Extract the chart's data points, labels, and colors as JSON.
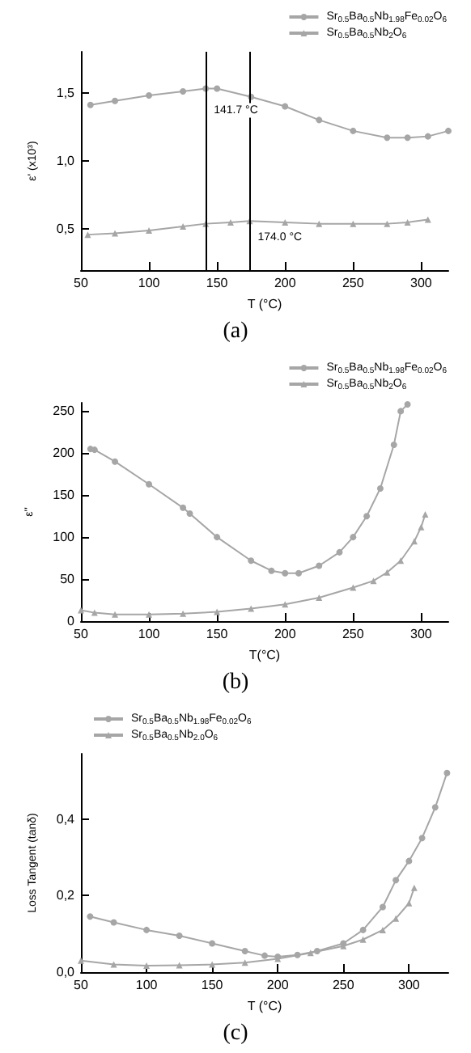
{
  "chart_data": [
    {
      "type": "line",
      "title": "(a)",
      "xlabel": "T (°C)",
      "ylabel": "ε' (x10³)",
      "legend": "top right",
      "grid": false,
      "xlim": [
        50,
        320
      ],
      "xticks": [
        50,
        100,
        150,
        200,
        250,
        300
      ],
      "ylim": [
        0.2,
        1.8
      ],
      "yticks": [
        {
          "value": 0.5,
          "label": "0,5"
        },
        {
          "value": 1.0,
          "label": "1,0"
        },
        {
          "value": 1.5,
          "label": "1,5"
        }
      ],
      "ref_lines": [
        {
          "axis": "x",
          "value": 141.7,
          "color": "#000000"
        },
        {
          "axis": "x",
          "value": 174.0,
          "color": "#000000"
        }
      ],
      "annotations": [
        {
          "text": "141.7 °C",
          "x": 141.7,
          "y": 1.37
        },
        {
          "text": "174.0 °C",
          "x": 174.0,
          "y": 0.44
        }
      ],
      "series": [
        {
          "name": "Sr$_{0.5}$Ba$_{0.5}$Nb$_{1.98}$Fe$_{0.02}$O$_{6}$",
          "color": "#a6a6a6",
          "marker": "circle",
          "x": [
            57,
            75,
            100,
            125,
            141.7,
            150,
            175,
            200,
            225,
            250,
            275,
            290,
            305,
            320
          ],
          "values": [
            1.41,
            1.44,
            1.48,
            1.51,
            1.53,
            1.53,
            1.47,
            1.4,
            1.3,
            1.22,
            1.17,
            1.17,
            1.18,
            1.22
          ]
        },
        {
          "name": "Sr$_{0.5}$Ba$_{0.5}$Nb$_{2}$O$_{6}$",
          "color": "#a6a6a6",
          "marker": "triangle",
          "x": [
            55,
            75,
            100,
            125,
            141.7,
            160,
            174,
            200,
            225,
            250,
            275,
            290,
            305
          ],
          "values": [
            0.46,
            0.47,
            0.49,
            0.52,
            0.54,
            0.55,
            0.56,
            0.55,
            0.54,
            0.54,
            0.54,
            0.55,
            0.57
          ]
        }
      ]
    },
    {
      "type": "line",
      "title": "(b)",
      "xlabel": "T(°C)",
      "ylabel": "ε''",
      "legend": "top right",
      "grid": false,
      "xlim": [
        50,
        320
      ],
      "xticks": [
        50,
        100,
        150,
        200,
        250,
        300
      ],
      "ylim": [
        0,
        260
      ],
      "yticks": [
        0,
        50,
        100,
        150,
        200,
        250
      ],
      "series": [
        {
          "name": "Sr$_{0.5}$Ba$_{0.5}$Nb$_{1.98}$Fe$_{0.02}$O$_{6}$",
          "color": "#a6a6a6",
          "marker": "circle",
          "x": [
            57,
            60,
            75,
            100,
            125,
            130,
            150,
            175,
            190,
            200,
            210,
            225,
            240,
            250,
            260,
            270,
            280,
            285,
            290
          ],
          "values": [
            205,
            204,
            190,
            163,
            135,
            128,
            100,
            72,
            60,
            57,
            57,
            66,
            82,
            100,
            125,
            158,
            210,
            250,
            258
          ]
        },
        {
          "name": "Sr$_{0.5}$Ba$_{0.5}$Nb$_{2}$O$_{6}$",
          "color": "#a6a6a6",
          "marker": "triangle",
          "x": [
            50,
            60,
            75,
            100,
            125,
            150,
            175,
            200,
            225,
            250,
            265,
            275,
            285,
            295,
            300,
            303
          ],
          "values": [
            13,
            10,
            8,
            8,
            9,
            11,
            15,
            20,
            28,
            40,
            48,
            58,
            72,
            95,
            112,
            127
          ]
        }
      ]
    },
    {
      "type": "line",
      "title": "(c)",
      "xlabel": "T (°C)",
      "ylabel": "Loss Tangent (tanδ)",
      "legend": "top left",
      "grid": false,
      "xlim": [
        50,
        330
      ],
      "xticks": [
        50,
        100,
        150,
        200,
        250,
        300
      ],
      "ylim": [
        0,
        0.57
      ],
      "yticks": [
        {
          "value": 0,
          "label": "0,0"
        },
        {
          "value": 0.2,
          "label": "0,2"
        },
        {
          "value": 0.4,
          "label": "0,4"
        }
      ],
      "series": [
        {
          "name": "Sr$_{0.5}$Ba$_{0.5}$Nb$_{1.98}$Fe$_{0.02}$O$_{6}$",
          "color": "#a6a6a6",
          "marker": "circle",
          "x": [
            57,
            75,
            100,
            125,
            150,
            175,
            190,
            200,
            215,
            230,
            250,
            265,
            280,
            290,
            300,
            310,
            320,
            329
          ],
          "values": [
            0.145,
            0.13,
            0.11,
            0.095,
            0.075,
            0.055,
            0.043,
            0.04,
            0.045,
            0.055,
            0.075,
            0.11,
            0.17,
            0.24,
            0.29,
            0.35,
            0.43,
            0.52
          ]
        },
        {
          "name": "Sr$_{0.5}$Ba$_{0.5}$Nb$_{2.0}$O$_{6}$",
          "color": "#a6a6a6",
          "marker": "triangle",
          "x": [
            50,
            75,
            100,
            125,
            150,
            175,
            200,
            225,
            250,
            265,
            280,
            290,
            300,
            304
          ],
          "values": [
            0.03,
            0.02,
            0.017,
            0.018,
            0.02,
            0.025,
            0.035,
            0.05,
            0.068,
            0.085,
            0.11,
            0.14,
            0.18,
            0.22
          ]
        }
      ]
    }
  ]
}
